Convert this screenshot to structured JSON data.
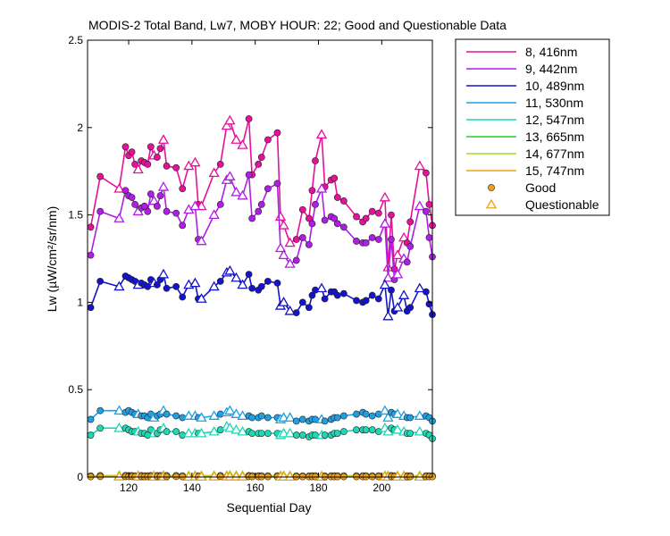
{
  "chart_data": {
    "type": "line",
    "title": "MODIS-2 Total Band,  Lw7, MOBY HOUR: 22;  Good and Questionable Data",
    "xlabel": "Sequential Day",
    "ylabel": "Lw (µW/cm²/sr/nm)",
    "xlim": [
      107,
      216
    ],
    "ylim": [
      0,
      2.5
    ],
    "x_ticks": [
      120,
      140,
      160,
      180,
      200
    ],
    "x_tick_labels": [
      "120",
      "140",
      "160",
      "180",
      "200"
    ],
    "y_ticks": [
      0,
      0.5,
      1,
      1.5,
      2,
      2.5
    ],
    "y_tick_labels": [
      "0",
      "0.5",
      "1",
      "1.5",
      "2",
      "2.5"
    ],
    "grid": false,
    "legend_position": "outside-right",
    "x": [
      108,
      111,
      117,
      119,
      120,
      121,
      122,
      123,
      124,
      125,
      126,
      127,
      128,
      129,
      130,
      131,
      132,
      135,
      137,
      139,
      141,
      142,
      143,
      147,
      149,
      151,
      152,
      154,
      156,
      158,
      159,
      161,
      162,
      164,
      167,
      168,
      169,
      171,
      173,
      175,
      177,
      178,
      179,
      181,
      182,
      184,
      185,
      186,
      188,
      192,
      194,
      195,
      197,
      199,
      201,
      202,
      203,
      204,
      205,
      207,
      208,
      209,
      212,
      214,
      215,
      216
    ],
    "series": [
      {
        "name": "8, 416nm",
        "color": "#e6109a",
        "values": [
          1.43,
          1.72,
          1.65,
          1.89,
          1.84,
          1.86,
          1.79,
          1.76,
          1.81,
          1.8,
          1.79,
          1.89,
          1.84,
          1.83,
          1.88,
          1.93,
          1.78,
          1.77,
          1.65,
          1.78,
          1.8,
          1.56,
          1.55,
          1.74,
          1.79,
          2.01,
          2.04,
          1.93,
          1.9,
          2.05,
          1.73,
          1.79,
          1.83,
          1.93,
          1.97,
          1.49,
          1.44,
          1.34,
          1.36,
          1.53,
          1.48,
          1.64,
          1.81,
          1.96,
          1.66,
          1.7,
          1.71,
          1.6,
          1.58,
          1.49,
          1.46,
          1.48,
          1.52,
          1.51,
          1.6,
          1.2,
          1.5,
          1.19,
          1.27,
          1.37,
          1.34,
          1.46,
          1.78,
          1.74,
          1.56,
          1.44
        ]
      },
      {
        "name": "9, 442nm",
        "color": "#b01ee6",
        "values": [
          1.27,
          1.52,
          1.48,
          1.64,
          1.61,
          1.6,
          1.56,
          1.52,
          1.54,
          1.55,
          1.52,
          1.62,
          1.58,
          1.55,
          1.61,
          1.66,
          1.52,
          1.51,
          1.44,
          1.53,
          1.55,
          1.36,
          1.35,
          1.5,
          1.56,
          1.7,
          1.72,
          1.63,
          1.61,
          1.73,
          1.48,
          1.52,
          1.56,
          1.65,
          1.68,
          1.31,
          1.27,
          1.22,
          1.24,
          1.37,
          1.33,
          1.45,
          1.56,
          1.65,
          1.47,
          1.49,
          1.48,
          1.45,
          1.43,
          1.35,
          1.34,
          1.34,
          1.37,
          1.36,
          1.45,
          1.14,
          1.36,
          1.13,
          1.16,
          1.25,
          1.23,
          1.32,
          1.55,
          1.52,
          1.37,
          1.26
        ]
      },
      {
        "name": "10, 489nm",
        "color": "#1414c8",
        "values": [
          0.97,
          1.12,
          1.09,
          1.15,
          1.14,
          1.13,
          1.12,
          1.1,
          1.11,
          1.1,
          1.09,
          1.13,
          1.11,
          1.1,
          1.13,
          1.16,
          1.08,
          1.09,
          1.03,
          1.1,
          1.11,
          1.02,
          1.02,
          1.09,
          1.12,
          1.17,
          1.18,
          1.14,
          1.1,
          1.16,
          1.08,
          1.07,
          1.09,
          1.12,
          1.11,
          0.98,
          1.0,
          0.95,
          0.94,
          1.0,
          0.97,
          1.04,
          1.07,
          1.08,
          1.02,
          1.06,
          1.06,
          1.04,
          1.05,
          1.01,
          1.0,
          1.01,
          1.04,
          1.02,
          1.1,
          0.92,
          1.07,
          0.95,
          0.97,
          1.04,
          0.95,
          0.97,
          1.08,
          1.06,
          0.99,
          0.93
        ]
      },
      {
        "name": "11, 530nm",
        "color": "#1ea0e6",
        "values": [
          0.33,
          0.38,
          0.38,
          0.37,
          0.38,
          0.37,
          0.36,
          0.36,
          0.35,
          0.35,
          0.34,
          0.36,
          0.34,
          0.35,
          0.36,
          0.38,
          0.36,
          0.35,
          0.34,
          0.35,
          0.35,
          0.34,
          0.34,
          0.35,
          0.36,
          0.37,
          0.38,
          0.36,
          0.35,
          0.35,
          0.34,
          0.34,
          0.35,
          0.34,
          0.34,
          0.33,
          0.34,
          0.34,
          0.32,
          0.33,
          0.32,
          0.33,
          0.33,
          0.33,
          0.32,
          0.33,
          0.34,
          0.34,
          0.35,
          0.36,
          0.37,
          0.36,
          0.35,
          0.36,
          0.38,
          0.34,
          0.37,
          0.36,
          0.36,
          0.35,
          0.34,
          0.34,
          0.35,
          0.35,
          0.34,
          0.32
        ]
      },
      {
        "name": "12, 547nm",
        "color": "#1ed7b4",
        "values": [
          0.24,
          0.28,
          0.28,
          0.28,
          0.27,
          0.26,
          0.26,
          0.26,
          0.25,
          0.25,
          0.24,
          0.27,
          0.25,
          0.25,
          0.27,
          0.28,
          0.26,
          0.26,
          0.24,
          0.25,
          0.25,
          0.25,
          0.25,
          0.26,
          0.27,
          0.29,
          0.28,
          0.27,
          0.26,
          0.26,
          0.25,
          0.25,
          0.25,
          0.25,
          0.25,
          0.24,
          0.25,
          0.25,
          0.24,
          0.24,
          0.23,
          0.24,
          0.24,
          0.24,
          0.24,
          0.24,
          0.25,
          0.25,
          0.26,
          0.27,
          0.27,
          0.27,
          0.27,
          0.26,
          0.28,
          0.26,
          0.28,
          0.27,
          0.27,
          0.26,
          0.25,
          0.25,
          0.26,
          0.25,
          0.24,
          0.22
        ]
      },
      {
        "name": "13, 665nm",
        "color": "#1ed22d",
        "values": [
          0.005,
          0.006,
          0.006,
          0.007,
          0.006,
          0.006,
          0.005,
          0.006,
          0.006,
          0.005,
          0.005,
          0.006,
          0.005,
          0.006,
          0.006,
          0.007,
          0.006,
          0.006,
          0.005,
          0.005,
          0.006,
          0.005,
          0.005,
          0.006,
          0.006,
          0.006,
          0.007,
          0.006,
          0.006,
          0.006,
          0.005,
          0.005,
          0.005,
          0.005,
          0.005,
          0.005,
          0.005,
          0.005,
          0.004,
          0.004,
          0.004,
          0.005,
          0.005,
          0.005,
          0.004,
          0.005,
          0.005,
          0.005,
          0.005,
          0.005,
          0.005,
          0.005,
          0.005,
          0.005,
          0.006,
          0.005,
          0.006,
          0.005,
          0.005,
          0.005,
          0.005,
          0.005,
          0.005,
          0.005,
          0.005,
          0.004
        ]
      },
      {
        "name": "14, 677nm",
        "color": "#a0dc1e",
        "values": [
          0.006,
          0.008,
          0.008,
          0.009,
          0.008,
          0.008,
          0.007,
          0.008,
          0.008,
          0.007,
          0.007,
          0.008,
          0.007,
          0.008,
          0.008,
          0.009,
          0.008,
          0.008,
          0.007,
          0.007,
          0.008,
          0.007,
          0.007,
          0.008,
          0.008,
          0.008,
          0.009,
          0.008,
          0.008,
          0.008,
          0.007,
          0.007,
          0.007,
          0.007,
          0.007,
          0.007,
          0.007,
          0.007,
          0.006,
          0.006,
          0.006,
          0.007,
          0.007,
          0.007,
          0.006,
          0.007,
          0.007,
          0.007,
          0.007,
          0.007,
          0.007,
          0.007,
          0.007,
          0.007,
          0.008,
          0.007,
          0.008,
          0.007,
          0.007,
          0.007,
          0.007,
          0.007,
          0.007,
          0.007,
          0.007,
          0.006
        ]
      },
      {
        "name": "15, 747nm",
        "color": "#f0a014",
        "values": [
          0.002,
          0.003,
          0.003,
          0.003,
          0.003,
          0.003,
          0.002,
          0.003,
          0.003,
          0.002,
          0.002,
          0.003,
          0.002,
          0.003,
          0.003,
          0.003,
          0.003,
          0.003,
          0.002,
          0.002,
          0.003,
          0.002,
          0.002,
          0.003,
          0.003,
          0.003,
          0.003,
          0.003,
          0.003,
          0.003,
          0.002,
          0.002,
          0.002,
          0.002,
          0.002,
          0.002,
          0.002,
          0.002,
          0.002,
          0.002,
          0.002,
          0.002,
          0.002,
          0.002,
          0.002,
          0.002,
          0.002,
          0.002,
          0.002,
          0.002,
          0.002,
          0.002,
          0.002,
          0.002,
          0.003,
          0.002,
          0.003,
          0.002,
          0.002,
          0.002,
          0.002,
          0.002,
          0.002,
          0.002,
          0.002,
          0.002
        ]
      }
    ],
    "quality": [
      "Good",
      "Good",
      "Questionable",
      "Good",
      "Good",
      "Good",
      "Good",
      "Questionable",
      "Good",
      "Good",
      "Good",
      "Good",
      "Questionable",
      "Good",
      "Good",
      "Questionable",
      "Good",
      "Good",
      "Good",
      "Questionable",
      "Questionable",
      "Good",
      "Questionable",
      "Questionable",
      "Good",
      "Questionable",
      "Questionable",
      "Questionable",
      "Questionable",
      "Good",
      "Good",
      "Good",
      "Good",
      "Good",
      "Good",
      "Questionable",
      "Questionable",
      "Questionable",
      "Good",
      "Good",
      "Good",
      "Good",
      "Good",
      "Questionable",
      "Good",
      "Good",
      "Good",
      "Good",
      "Good",
      "Good",
      "Good",
      "Good",
      "Good",
      "Good",
      "Questionable",
      "Questionable",
      "Good",
      "Good",
      "Questionable",
      "Questionable",
      "Good",
      "Good",
      "Questionable",
      "Good",
      "Good",
      "Good"
    ],
    "legend": {
      "markers": [
        {
          "label": "Good",
          "marker": "circle",
          "face_color": "#f0a014"
        },
        {
          "label": "Questionable",
          "marker": "triangle",
          "edge_color": "#f0a014"
        }
      ]
    }
  }
}
